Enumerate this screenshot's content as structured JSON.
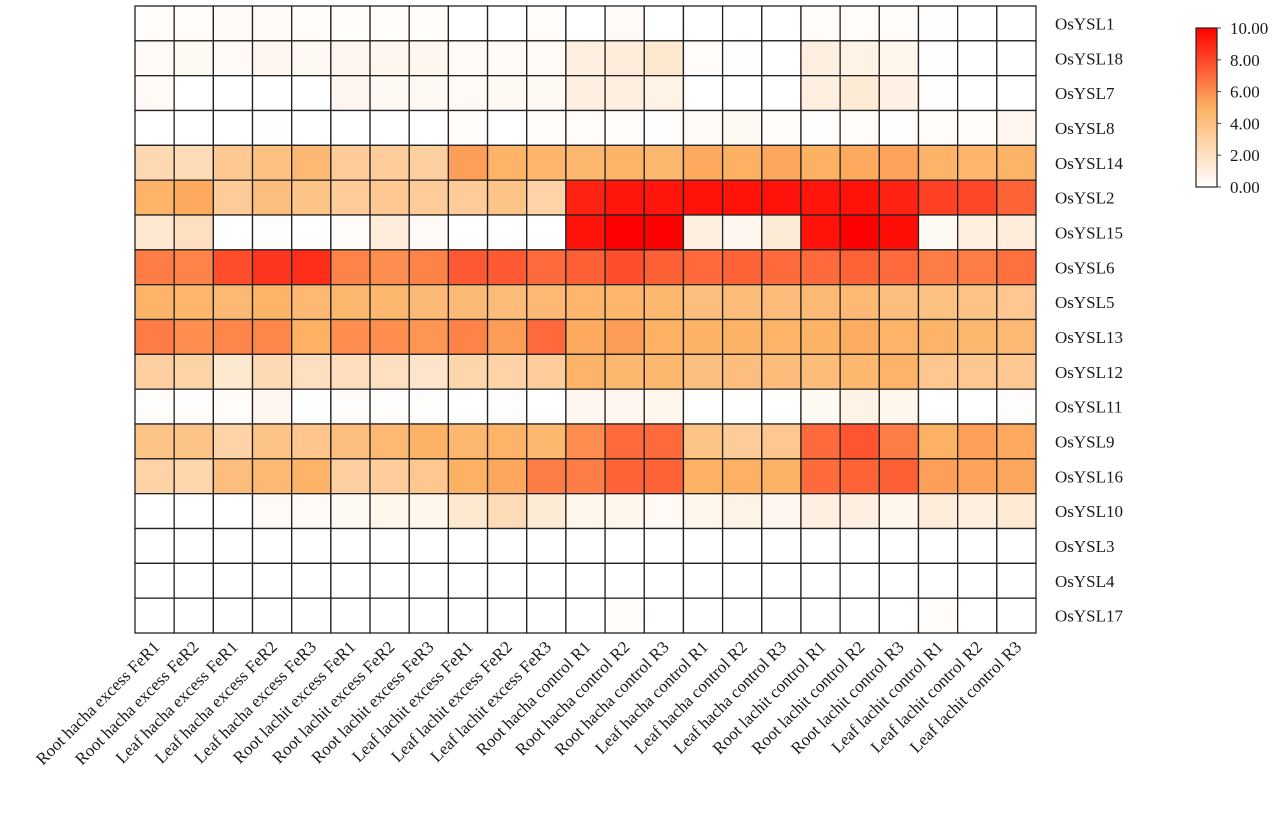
{
  "chart_data": {
    "type": "heatmap",
    "title": "",
    "columns": [
      "Root hacha excess FeR1",
      "Root hacha excess FeR2",
      "Leaf hacha excess FeR1",
      "Leaf hacha excess FeR2",
      "Leaf hacha excess FeR3",
      "Root lachit excess FeR1",
      "Root lachit excess FeR2",
      "Root lachit excess FeR3",
      "Leaf lachit excess FeR1",
      "Leaf lachit excess FeR2",
      "Leaf lachit excess FeR3",
      "Root hacha control R1",
      "Root hacha control R2",
      "Root hacha control R3",
      "Leaf hacha control R1",
      "Leaf hacha control R2",
      "Leaf hacha control R3",
      "Root lachit control R1",
      "Root lachit control R2",
      "Root lachit control R3",
      "Leaf lachit control R1",
      "Leaf lachit control R2",
      "Leaf lachit control R3"
    ],
    "rows": [
      "OsYSL1",
      "OsYSL18",
      "OsYSL7",
      "OsYSL8",
      "OsYSL14",
      "OsYSL2",
      "OsYSL15",
      "OsYSL6",
      "OsYSL5",
      "OsYSL13",
      "OsYSL12",
      "OsYSL11",
      "OsYSL9",
      "OsYSL16",
      "OsYSL10",
      "OsYSL3",
      "OsYSL4",
      "OsYSL17"
    ],
    "values": [
      [
        0.2,
        0.2,
        0.3,
        0.3,
        0.2,
        0.2,
        0.2,
        0.2,
        0,
        0,
        0.2,
        0,
        0.3,
        0,
        0,
        0,
        0,
        0.2,
        0.2,
        0.2,
        0.1,
        0,
        0
      ],
      [
        0.3,
        0.4,
        0.3,
        0.5,
        0.4,
        0.5,
        0.5,
        0.5,
        0.3,
        0.3,
        0.3,
        1.0,
        1.2,
        1.5,
        0.2,
        0.1,
        0,
        1.0,
        0.8,
        0.6,
        0.1,
        0,
        0
      ],
      [
        0.3,
        0,
        0,
        0,
        0,
        0.5,
        0.4,
        0.4,
        0.3,
        0.4,
        0.4,
        1.0,
        1.0,
        0.8,
        0,
        0,
        0,
        1.0,
        1.3,
        0.9,
        0.1,
        0,
        0
      ],
      [
        0,
        0,
        0,
        0.1,
        0,
        0,
        0,
        0,
        0.2,
        0,
        0.2,
        0.2,
        0.2,
        0.1,
        0.3,
        0.4,
        0.2,
        0.1,
        0.2,
        0.1,
        0.2,
        0.2,
        0.5
      ],
      [
        2.5,
        2.3,
        3.5,
        4.0,
        4.5,
        3.3,
        3.2,
        3.0,
        5.5,
        4.8,
        4.7,
        4.6,
        4.8,
        4.6,
        5.2,
        5.0,
        5.3,
        5.0,
        5.2,
        5.4,
        4.8,
        4.7,
        4.8
      ],
      [
        4.8,
        5.2,
        3.3,
        4.2,
        3.8,
        3.3,
        3.5,
        3.3,
        3.3,
        3.8,
        2.8,
        9.0,
        9.4,
        9.4,
        9.5,
        9.5,
        9.5,
        9.4,
        9.5,
        9.0,
        8.2,
        8.0,
        7.2
      ],
      [
        1.5,
        2.0,
        0,
        0.1,
        0,
        0.2,
        1.2,
        0.3,
        0,
        0,
        0,
        9.5,
        10,
        10,
        1.0,
        0.5,
        1.3,
        9.5,
        10,
        9.6,
        0.4,
        1.0,
        1.2
      ],
      [
        6.5,
        6.3,
        7.8,
        8.5,
        8.7,
        6.3,
        6.0,
        6.3,
        7.5,
        7.5,
        7.0,
        7.3,
        7.8,
        7.3,
        7.0,
        7.2,
        7.0,
        7.0,
        7.2,
        7.0,
        6.5,
        6.5,
        6.8
      ],
      [
        4.8,
        4.7,
        4.5,
        4.8,
        4.5,
        4.6,
        4.6,
        4.4,
        4.4,
        4.3,
        4.5,
        4.7,
        4.7,
        4.6,
        4.2,
        4.3,
        4.3,
        4.4,
        4.5,
        4.2,
        4.0,
        3.9,
        3.6
      ],
      [
        6.5,
        6.0,
        6.2,
        6.2,
        5.0,
        6.0,
        6.0,
        5.8,
        6.3,
        5.6,
        7.0,
        5.2,
        5.6,
        5.0,
        4.9,
        4.9,
        4.8,
        4.9,
        5.1,
        4.8,
        4.8,
        4.6,
        4.5
      ],
      [
        3.0,
        2.8,
        1.5,
        2.4,
        2.0,
        2.1,
        2.0,
        1.7,
        2.6,
        2.8,
        3.2,
        4.8,
        4.6,
        4.6,
        4.1,
        4.2,
        4.3,
        4.3,
        4.6,
        4.8,
        3.6,
        3.6,
        3.5
      ],
      [
        0.1,
        0.1,
        0.2,
        0.5,
        0,
        0.1,
        0.1,
        0.1,
        0,
        0.1,
        0,
        0.5,
        0.5,
        0.6,
        0,
        0,
        0,
        0.4,
        0.8,
        0.6,
        0,
        0,
        0.1
      ],
      [
        3.8,
        3.8,
        2.8,
        3.8,
        3.7,
        4.2,
        4.5,
        4.9,
        4.6,
        4.8,
        4.6,
        6.0,
        7.0,
        7.0,
        3.8,
        3.3,
        3.6,
        7.0,
        7.6,
        6.5,
        5.0,
        5.5,
        5.2
      ],
      [
        2.8,
        2.6,
        4.2,
        4.5,
        4.8,
        3.0,
        3.2,
        3.6,
        5.0,
        5.3,
        6.5,
        6.5,
        7.2,
        7.2,
        5.0,
        5.0,
        4.9,
        7.0,
        7.2,
        7.3,
        5.5,
        5.4,
        5.3
      ],
      [
        0,
        0,
        0,
        0.3,
        0.3,
        0.4,
        0.6,
        0.6,
        1.5,
        2.3,
        1.3,
        0.6,
        0.6,
        0.3,
        0.6,
        0.8,
        0.5,
        1.0,
        1.0,
        0.6,
        1.2,
        1.0,
        1.4
      ],
      [
        0,
        0,
        0,
        0,
        0,
        0,
        0,
        0,
        0,
        0,
        0,
        0,
        0,
        0,
        0,
        0,
        0,
        0,
        0,
        0,
        0,
        0,
        0
      ],
      [
        0,
        0,
        0,
        0,
        0,
        0,
        0,
        0,
        0,
        0,
        0,
        0,
        0,
        0,
        0,
        0,
        0,
        0,
        0,
        0,
        0,
        0,
        0
      ],
      [
        0,
        0,
        0,
        0,
        0,
        0,
        0,
        0,
        0,
        0,
        0,
        0,
        0.2,
        0,
        0,
        0,
        0,
        0,
        0,
        0,
        0.2,
        0,
        0
      ]
    ],
    "color_range": [
      0,
      10
    ],
    "colorscale": [
      "#ffffff",
      "#fdb163",
      "#ff0000"
    ],
    "colorbar_ticks": [
      "0.00",
      "2.00",
      "4.00",
      "6.00",
      "8.00",
      "10.00"
    ],
    "legend_placement": "top-right",
    "grid": true
  }
}
